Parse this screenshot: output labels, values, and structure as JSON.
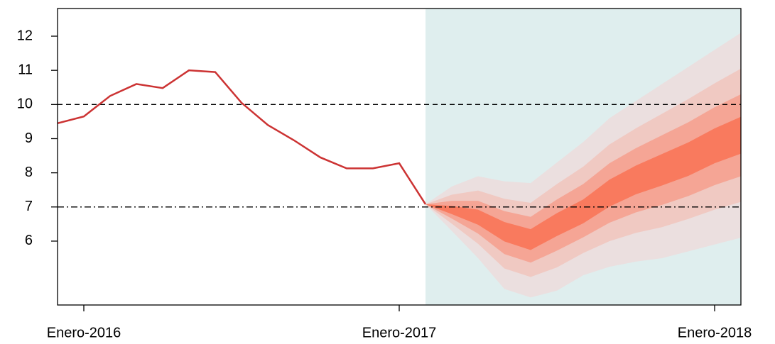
{
  "chart_data": {
    "type": "fan",
    "x": [
      "2015-12",
      "2016-01",
      "2016-02",
      "2016-03",
      "2016-04",
      "2016-05",
      "2016-06",
      "2016-07",
      "2016-08",
      "2016-09",
      "2016-10",
      "2016-11",
      "2016-12",
      "2017-01",
      "2017-02"
    ],
    "values": [
      9.45,
      9.65,
      10.25,
      10.6,
      10.48,
      11.0,
      10.95,
      10.05,
      9.4,
      8.95,
      8.45,
      8.13,
      8.13,
      8.28,
      7.08
    ],
    "color": "#cc3333",
    "fan_x": [
      "2017-02",
      "2017-03",
      "2017-04",
      "2017-05",
      "2017-06",
      "2017-07",
      "2017-08",
      "2017-09",
      "2017-10",
      "2017-11",
      "2017-12",
      "2018-01",
      "2018-02"
    ],
    "bands": [
      {
        "color": "#ebdfdf",
        "upper": [
          7.08,
          7.6,
          7.9,
          7.75,
          7.7,
          8.3,
          8.9,
          9.6,
          10.1,
          10.6,
          11.1,
          11.6,
          12.1
        ],
        "lower": [
          7.08,
          6.3,
          5.5,
          4.6,
          4.35,
          4.55,
          5.0,
          5.25,
          5.4,
          5.5,
          5.7,
          5.9,
          6.1
        ]
      },
      {
        "color": "#f0c9c2",
        "upper": [
          7.08,
          7.36,
          7.48,
          7.24,
          7.12,
          7.67,
          8.18,
          8.83,
          9.3,
          9.73,
          10.16,
          10.62,
          11.05
        ],
        "lower": [
          7.08,
          6.51,
          5.92,
          5.2,
          4.95,
          5.23,
          5.65,
          6.0,
          6.24,
          6.41,
          6.65,
          6.92,
          7.15
        ]
      },
      {
        "color": "#f5a595",
        "upper": [
          7.08,
          7.18,
          7.18,
          6.88,
          6.71,
          7.22,
          7.67,
          8.28,
          8.72,
          9.1,
          9.48,
          9.92,
          10.3
        ],
        "lower": [
          7.08,
          6.66,
          6.22,
          5.62,
          5.37,
          5.72,
          6.11,
          6.54,
          6.84,
          7.06,
          7.32,
          7.64,
          7.9
        ]
      },
      {
        "color": "#f97a5e",
        "upper": [
          7.08,
          7.03,
          6.92,
          6.56,
          6.35,
          6.82,
          7.22,
          7.8,
          8.21,
          8.55,
          8.89,
          9.3,
          9.64
        ],
        "lower": [
          7.08,
          6.79,
          6.48,
          5.99,
          5.74,
          6.15,
          6.52,
          7.01,
          7.37,
          7.63,
          7.91,
          8.28,
          8.56
        ]
      }
    ],
    "forecast_shade": {
      "start": "2017-02",
      "color": "#dfeeee"
    },
    "hlines": [
      {
        "value": 10,
        "style": "dashed"
      },
      {
        "value": 7,
        "style": "dashdot"
      }
    ],
    "xlim": [
      "2015-12",
      "2018-02"
    ],
    "xticks": [
      {
        "value": "2016-01",
        "label": "Enero-2016"
      },
      {
        "value": "2017-01",
        "label": "Enero-2017"
      },
      {
        "value": "2018-01",
        "label": "Enero-2018"
      }
    ],
    "ylim": [
      4.13,
      12.81
    ],
    "yticks": [
      6,
      7,
      8,
      9,
      10,
      11,
      12
    ]
  }
}
